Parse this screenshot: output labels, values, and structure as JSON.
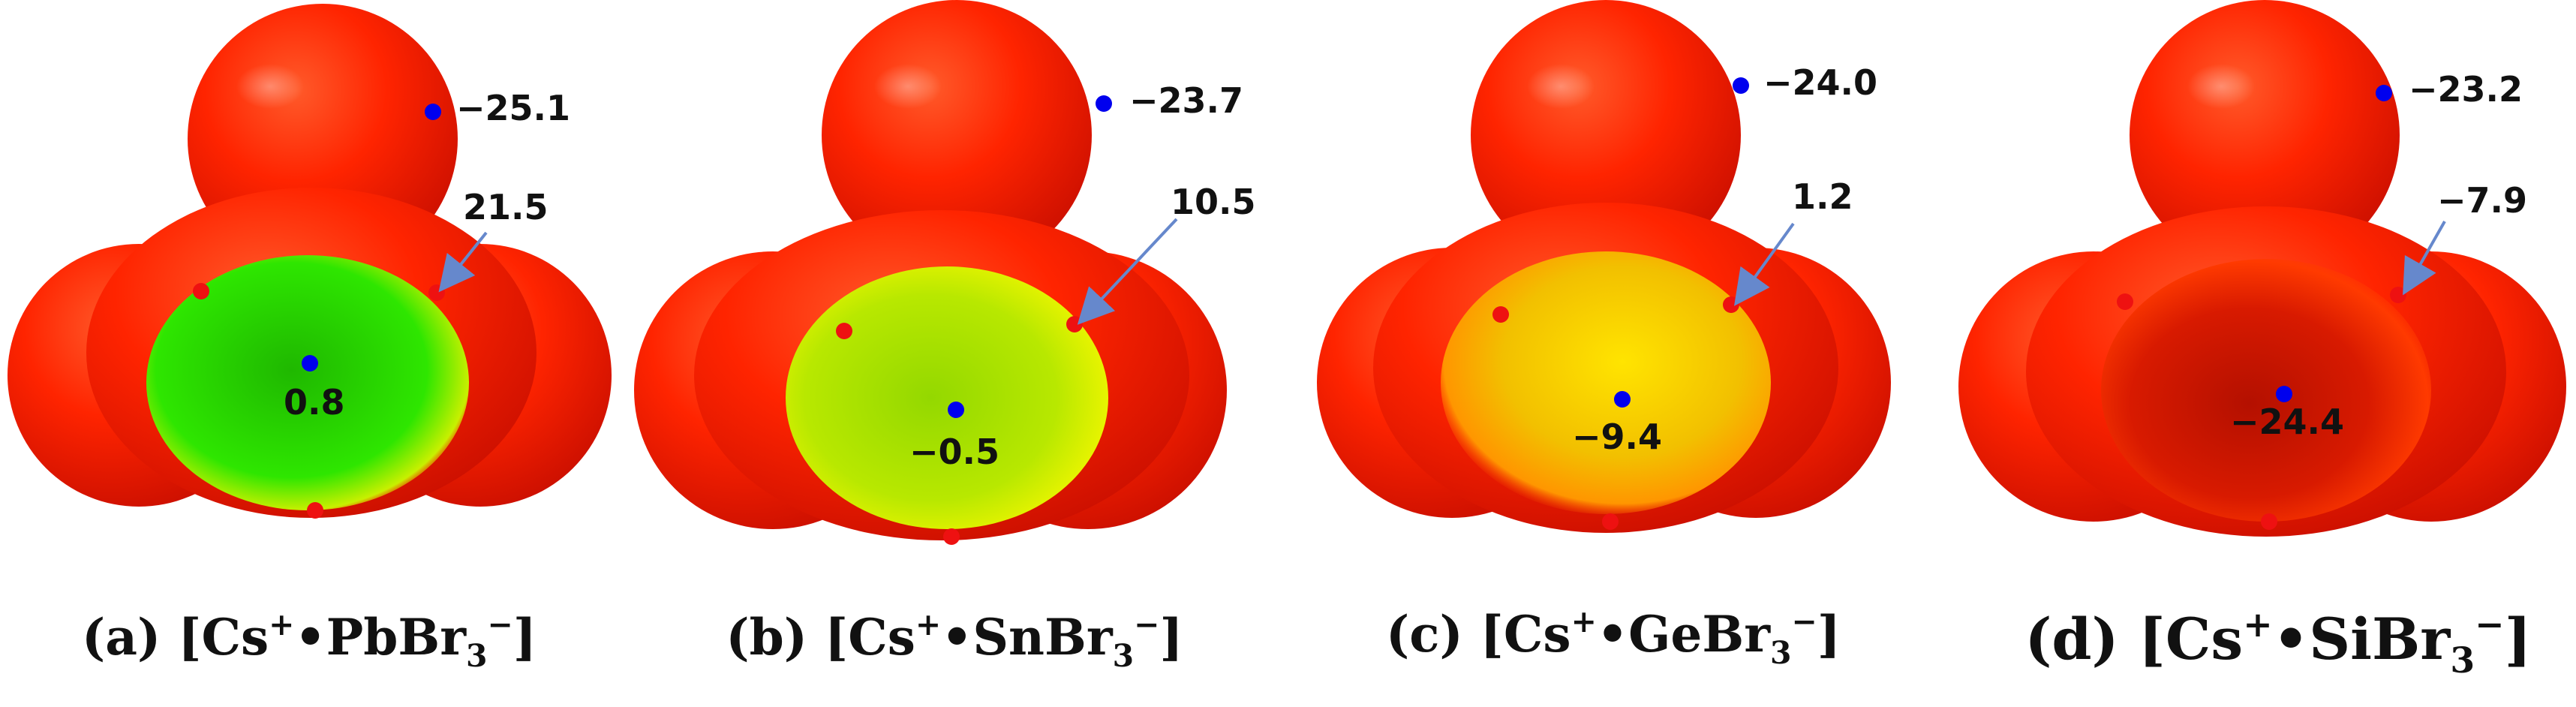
{
  "panels": [
    {
      "id": "a",
      "values": {
        "top": "−25.1",
        "arrow": "21.5",
        "center": "0.8"
      },
      "caption": {
        "label": "(a)",
        "cation": "Cs",
        "plus": "+",
        "bullet": "•",
        "element": "Pb",
        "halogen": "Br",
        "sub": "3",
        "minus": "−"
      },
      "colors": {
        "body": "#ff2a00",
        "center": "#1fe000",
        "rim": "#c8f000"
      }
    },
    {
      "id": "b",
      "values": {
        "top": "−23.7",
        "arrow": "10.5",
        "center": "−0.5"
      },
      "caption": {
        "label": "(b)",
        "cation": "Cs",
        "plus": "+",
        "bullet": "•",
        "element": "Sn",
        "halogen": "Br",
        "sub": "3",
        "minus": "−"
      },
      "colors": {
        "body": "#ff2a00",
        "center": "#a6e000",
        "rim": "#e4f400"
      }
    },
    {
      "id": "c",
      "values": {
        "top": "−24.0",
        "arrow": "1.2",
        "center": "−9.4"
      },
      "caption": {
        "label": "(c)",
        "cation": "Cs",
        "plus": "+",
        "bullet": "•",
        "element": "Ge",
        "halogen": "Br",
        "sub": "3",
        "minus": "−"
      },
      "colors": {
        "body": "#ff2a00",
        "center": "#f0c400",
        "rim": "#ffe600"
      }
    },
    {
      "id": "d",
      "values": {
        "top": "−23.2",
        "arrow": "−7.9",
        "center": "−24.4"
      },
      "caption": {
        "label": "(d)",
        "cation": "Cs",
        "plus": "+",
        "bullet": "•",
        "element": "Si",
        "halogen": "Br",
        "sub": "3",
        "minus": "−"
      },
      "colors": {
        "body": "#ff2a00",
        "center": "#c81400",
        "rim": "#ff4a00"
      }
    }
  ],
  "marker_colors": {
    "minimum": "#0000ee",
    "maximum": "#ee1111",
    "arrow": "#6688cc"
  }
}
